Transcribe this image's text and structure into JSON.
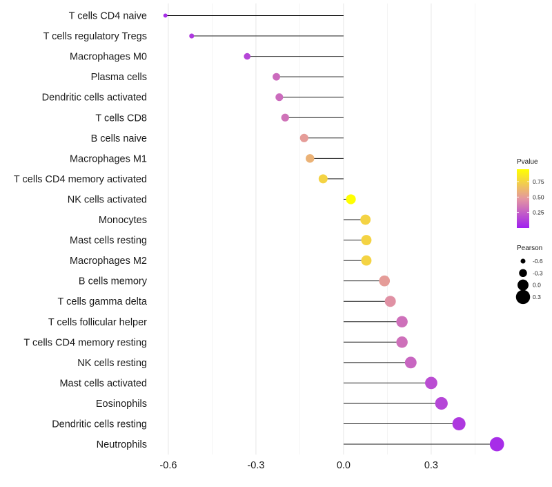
{
  "chart_data": {
    "type": "lollipop",
    "categories": [
      "T cells CD4 naive",
      "T cells regulatory  Tregs",
      "Macrophages M0",
      "Plasma cells",
      "Dendritic cells activated",
      "T cells CD8",
      "B cells naive",
      "Macrophages M1",
      "T cells CD4 memory activated",
      "NK cells activated",
      "Monocytes",
      "Mast cells resting",
      "Macrophages M2",
      "B cells memory",
      "T cells gamma delta",
      "T cells follicular helper",
      "T cells CD4 memory resting",
      "NK cells resting",
      "Mast cells activated",
      "Eosinophils",
      "Dendritic cells resting",
      "Neutrophils"
    ],
    "pearson": [
      -0.61,
      -0.52,
      -0.33,
      -0.23,
      -0.22,
      -0.2,
      -0.135,
      -0.115,
      -0.07,
      0.025,
      0.075,
      0.078,
      0.078,
      0.14,
      0.16,
      0.2,
      0.2,
      0.23,
      0.3,
      0.335,
      0.395,
      0.525
    ],
    "pvalue": [
      0.05,
      0.1,
      0.15,
      0.3,
      0.3,
      0.33,
      0.5,
      0.6,
      0.75,
      0.95,
      0.75,
      0.75,
      0.75,
      0.5,
      0.45,
      0.32,
      0.32,
      0.28,
      0.18,
      0.15,
      0.1,
      0.05
    ],
    "xlim": [
      -0.64,
      0.56
    ],
    "x_ticks": [
      -0.6,
      -0.3,
      0.0,
      0.3
    ],
    "x_tick_labels": [
      "-0.6",
      "-0.3",
      "0.0",
      "0.3"
    ],
    "xlabel": "",
    "ylabel": "",
    "grid": true,
    "legends": {
      "color": {
        "title": "Pvalue",
        "breaks": [
          0.25,
          0.5,
          0.75
        ],
        "labels": [
          "0.25",
          "0.50",
          "0.75"
        ],
        "range": [
          0.0,
          0.95
        ],
        "low_color": "#a020f0",
        "mid_color": "#e497a0",
        "high_color": "#ffff00"
      },
      "size": {
        "title": "Pearson",
        "values": [
          -0.6,
          -0.3,
          0.0,
          0.3
        ],
        "labels": [
          "-0.6",
          "-0.3",
          "0.0",
          "0.3"
        ]
      }
    }
  }
}
